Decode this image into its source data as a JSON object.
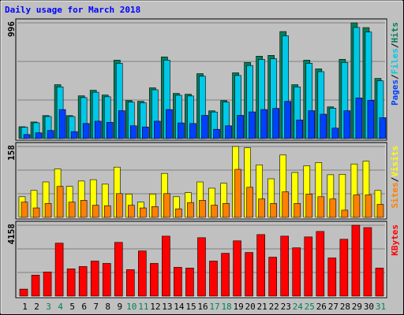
{
  "chart_data": [
    {
      "type": "bar",
      "title": "Daily usage for March 2018",
      "legend_separator": "/",
      "ylim": [
        0,
        996
      ],
      "yticks": [
        996
      ],
      "grid": true,
      "grid_divisions": 3,
      "series": [
        {
          "name": "Pages",
          "color": "#0040ff",
          "values": [
            35,
            50,
            70,
            250,
            60,
            130,
            150,
            140,
            240,
            110,
            100,
            150,
            250,
            135,
            130,
            200,
            80,
            110,
            200,
            230,
            250,
            260,
            320,
            160,
            240,
            210,
            90,
            240,
            350,
            330,
            180
          ]
        },
        {
          "name": "Files",
          "color": "#00c8e8",
          "values": [
            98,
            136,
            190,
            445,
            190,
            353,
            399,
            360,
            648,
            314,
            308,
            420,
            675,
            373,
            367,
            537,
            229,
            314,
            543,
            629,
            681,
            687,
            884,
            445,
            648,
            576,
            262,
            655,
            956,
            917,
            497
          ]
        },
        {
          "name": "Hits",
          "color": "#00805c",
          "values": [
            102,
            143,
            198,
            464,
            198,
            368,
            416,
            375,
            675,
            327,
            321,
            437,
            703,
            389,
            382,
            559,
            239,
            327,
            566,
            655,
            709,
            716,
            921,
            464,
            675,
            600,
            273,
            682,
            996,
            955,
            518
          ]
        }
      ]
    },
    {
      "type": "bar",
      "legend_separator": "/",
      "ylim": [
        0,
        158
      ],
      "yticks": [
        158
      ],
      "grid": true,
      "grid_divisions": 3,
      "series": [
        {
          "name": "Sites",
          "color": "#ff8000",
          "values": [
            34,
            21,
            31,
            69,
            34,
            38,
            27,
            26,
            53,
            27,
            21,
            24,
            53,
            19,
            33,
            38,
            27,
            31,
            107,
            67,
            41,
            31,
            57,
            31,
            52,
            46,
            41,
            16,
            50,
            50,
            29
          ]
        },
        {
          "name": "Visits",
          "color": "#ffff00",
          "values": [
            46,
            60,
            79,
            108,
            69,
            81,
            84,
            74,
            112,
            52,
            34,
            52,
            98,
            46,
            55,
            79,
            65,
            76,
            158,
            155,
            117,
            86,
            139,
            100,
            115,
            122,
            95,
            96,
            119,
            125,
            60
          ]
        }
      ]
    },
    {
      "type": "bar",
      "ylim": [
        0,
        4158
      ],
      "yticks": [
        4158
      ],
      "grid": true,
      "grid_divisions": 3,
      "categories": [
        "1",
        "2",
        "3",
        "4",
        "5",
        "6",
        "7",
        "8",
        "9",
        "10",
        "11",
        "12",
        "13",
        "14",
        "15",
        "16",
        "17",
        "18",
        "19",
        "20",
        "21",
        "22",
        "23",
        "24",
        "25",
        "26",
        "27",
        "28",
        "29",
        "30",
        "31"
      ],
      "category_colors": [
        "#000000",
        "#000000",
        "#00805c",
        "#00805c",
        "#000000",
        "#000000",
        "#000000",
        "#000000",
        "#000000",
        "#00805c",
        "#00805c",
        "#000000",
        "#000000",
        "#000000",
        "#000000",
        "#000000",
        "#00805c",
        "#00805c",
        "#000000",
        "#000000",
        "#000000",
        "#000000",
        "#000000",
        "#00805c",
        "#00805c",
        "#000000",
        "#000000",
        "#000000",
        "#000000",
        "#000000",
        "#00805c"
      ],
      "series": [
        {
          "name": "KBytes",
          "color": "#ff0000",
          "values": [
            411,
            1234,
            1417,
            3107,
            1599,
            1736,
            2056,
            1919,
            3153,
            1553,
            2650,
            1919,
            3518,
            1690,
            1645,
            3427,
            2056,
            2513,
            3244,
            2559,
            3610,
            2285,
            3518,
            2833,
            3473,
            3793,
            2239,
            3336,
            4158,
            4021,
            1645
          ]
        }
      ]
    }
  ]
}
